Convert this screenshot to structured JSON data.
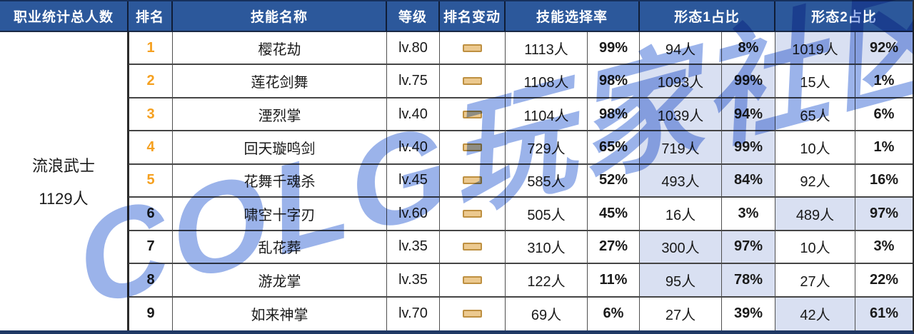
{
  "chart_data": {
    "type": "table",
    "title": "职业技能统计表",
    "columns": [
      "职业统计总人数",
      "排名",
      "技能名称",
      "等级",
      "排名变动",
      "技能选择率-人数",
      "技能选择率-占比",
      "形态1占比-人数",
      "形态1占比-占比",
      "形态2占比-人数",
      "形态2占比-占比"
    ],
    "class_summary": {
      "name": "流浪武士",
      "total": "1129人"
    },
    "rows": [
      {
        "rank": "1",
        "top": true,
        "skill": "樱花劫",
        "level": "lv.80",
        "change": "no-change",
        "selection": {
          "count": "1113人",
          "pct": "99%"
        },
        "form1": {
          "count": "94人",
          "pct": "8%",
          "highlight": false
        },
        "form2": {
          "count": "1019人",
          "pct": "92%",
          "highlight": true
        }
      },
      {
        "rank": "2",
        "top": true,
        "skill": "莲花剑舞",
        "level": "lv.75",
        "change": "no-change",
        "selection": {
          "count": "1108人",
          "pct": "98%"
        },
        "form1": {
          "count": "1093人",
          "pct": "99%",
          "highlight": true
        },
        "form2": {
          "count": "15人",
          "pct": "1%",
          "highlight": false
        }
      },
      {
        "rank": "3",
        "top": true,
        "skill": "湮烈掌",
        "level": "lv.40",
        "change": "no-change",
        "selection": {
          "count": "1104人",
          "pct": "98%"
        },
        "form1": {
          "count": "1039人",
          "pct": "94%",
          "highlight": true
        },
        "form2": {
          "count": "65人",
          "pct": "6%",
          "highlight": false
        }
      },
      {
        "rank": "4",
        "top": true,
        "skill": "回天璇鸣剑",
        "level": "lv.40",
        "change": "no-change",
        "selection": {
          "count": "729人",
          "pct": "65%"
        },
        "form1": {
          "count": "719人",
          "pct": "99%",
          "highlight": true
        },
        "form2": {
          "count": "10人",
          "pct": "1%",
          "highlight": false
        }
      },
      {
        "rank": "5",
        "top": true,
        "skill": "花舞千魂杀",
        "level": "lv.45",
        "change": "no-change",
        "selection": {
          "count": "585人",
          "pct": "52%"
        },
        "form1": {
          "count": "493人",
          "pct": "84%",
          "highlight": true
        },
        "form2": {
          "count": "92人",
          "pct": "16%",
          "highlight": false
        }
      },
      {
        "rank": "6",
        "top": false,
        "skill": "啸空十字刃",
        "level": "lv.60",
        "change": "no-change",
        "selection": {
          "count": "505人",
          "pct": "45%"
        },
        "form1": {
          "count": "16人",
          "pct": "3%",
          "highlight": false
        },
        "form2": {
          "count": "489人",
          "pct": "97%",
          "highlight": true
        }
      },
      {
        "rank": "7",
        "top": false,
        "skill": "乱花葬",
        "level": "lv.35",
        "change": "no-change",
        "selection": {
          "count": "310人",
          "pct": "27%"
        },
        "form1": {
          "count": "300人",
          "pct": "97%",
          "highlight": true
        },
        "form2": {
          "count": "10人",
          "pct": "3%",
          "highlight": false
        }
      },
      {
        "rank": "8",
        "top": false,
        "skill": "游龙掌",
        "level": "lv.35",
        "change": "no-change",
        "selection": {
          "count": "122人",
          "pct": "11%"
        },
        "form1": {
          "count": "95人",
          "pct": "78%",
          "highlight": true
        },
        "form2": {
          "count": "27人",
          "pct": "22%",
          "highlight": false
        }
      },
      {
        "rank": "9",
        "top": false,
        "skill": "如来神掌",
        "level": "lv.70",
        "change": "no-change",
        "selection": {
          "count": "69人",
          "pct": "6%"
        },
        "form1": {
          "count": "27人",
          "pct": "39%",
          "highlight": false
        },
        "form2": {
          "count": "42人",
          "pct": "61%",
          "highlight": true
        }
      }
    ]
  },
  "header": {
    "class_total": "职业统计总人数",
    "rank": "排名",
    "skill_name": "技能名称",
    "level": "等级",
    "rank_change": "排名变动",
    "selection_rate": "技能选择率",
    "form1_share": "形态1占比",
    "form2_share": "形态2占比"
  },
  "watermark": {
    "text": "COLG玩家社区"
  },
  "icons": {
    "rank_change": "dash-icon (no change)"
  },
  "colors": {
    "header_bg": "#2C589B",
    "header_text": "#ffffff",
    "highlight_cell": "#D9E0F2",
    "rank_top": "#F5A01F",
    "dash_fill": "#ECC98F",
    "dash_border": "#BE9041",
    "bottom_border": "#1F3864",
    "watermark_blue": "#9bb3ea"
  }
}
